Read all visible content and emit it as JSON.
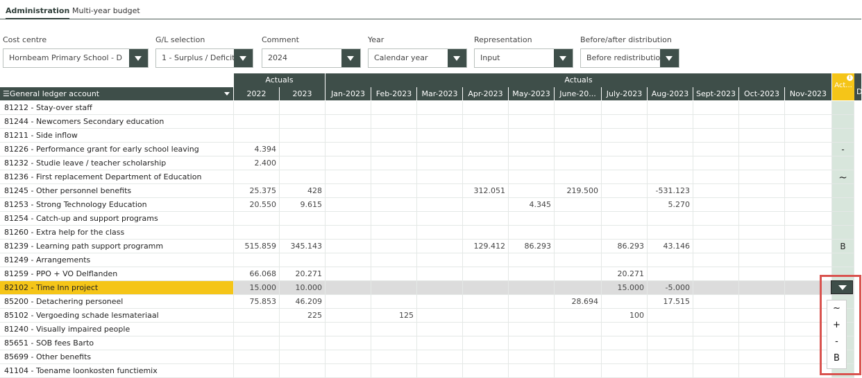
{
  "tabs": [
    {
      "label": "Administration",
      "active": true
    },
    {
      "label": "Multi-year budget",
      "active": false
    }
  ],
  "filters": [
    {
      "label": "Cost centre",
      "value": "Hornbeam Primary School - D"
    },
    {
      "label": "G/L selection",
      "value": "1 - Surplus / Deficit"
    },
    {
      "label": "Comment",
      "value": "2024"
    },
    {
      "label": "Year",
      "value": "Calendar year"
    },
    {
      "label": "Representation",
      "value": "Input"
    },
    {
      "label": "Before/after distribution",
      "value": "Before redistribution"
    }
  ],
  "grid": {
    "group_headers": [
      "Actuals",
      "Actuals",
      "Act..."
    ],
    "name_header": "General ledger account",
    "columns": [
      "2022",
      "2023",
      "Jan-2023",
      "Feb-2023",
      "Mar-2023",
      "Apr-2023",
      "May-2023",
      "June-20...",
      "July-2023",
      "Aug-2023",
      "Sept-2023",
      "Oct-2023",
      "Nov-2023"
    ],
    "rows": [
      {
        "name": "81212 - Stay-over staff",
        "values": [
          "",
          "",
          "",
          "",
          "",
          "",
          "",
          "",
          "",
          "",
          "",
          "",
          ""
        ],
        "act": ""
      },
      {
        "name": "81244 - Newcomers Secondary education",
        "values": [
          "",
          "",
          "",
          "",
          "",
          "",
          "",
          "",
          "",
          "",
          "",
          "",
          ""
        ],
        "act": ""
      },
      {
        "name": "81211 - Side inflow",
        "values": [
          "",
          "",
          "",
          "",
          "",
          "",
          "",
          "",
          "",
          "",
          "",
          "",
          ""
        ],
        "act": ""
      },
      {
        "name": "81226 - Performance grant for early school leaving",
        "values": [
          "4.394",
          "",
          "",
          "",
          "",
          "",
          "",
          "",
          "",
          "",
          "",
          "",
          ""
        ],
        "act": "-"
      },
      {
        "name": "81232 - Studie leave / teacher scholarship",
        "values": [
          "2.400",
          "",
          "",
          "",
          "",
          "",
          "",
          "",
          "",
          "",
          "",
          "",
          ""
        ],
        "act": ""
      },
      {
        "name": "81236 - First replacement Department of Education",
        "values": [
          "",
          "",
          "",
          "",
          "",
          "",
          "",
          "",
          "",
          "",
          "",
          "",
          ""
        ],
        "act": "~"
      },
      {
        "name": "81245 - Other personnel benefits",
        "values": [
          "25.375",
          "428",
          "",
          "",
          "",
          "312.051",
          "",
          "219.500",
          "",
          "-531.123",
          "",
          "",
          ""
        ],
        "act": ""
      },
      {
        "name": "81253 - Strong Technology Education",
        "values": [
          "20.550",
          "9.615",
          "",
          "",
          "",
          "",
          "4.345",
          "",
          "",
          "5.270",
          "",
          "",
          ""
        ],
        "act": ""
      },
      {
        "name": "81254 - Catch-up and support programs",
        "values": [
          "",
          "",
          "",
          "",
          "",
          "",
          "",
          "",
          "",
          "",
          "",
          "",
          ""
        ],
        "act": ""
      },
      {
        "name": "81260 - Extra help for the class",
        "values": [
          "",
          "",
          "",
          "",
          "",
          "",
          "",
          "",
          "",
          "",
          "",
          "",
          ""
        ],
        "act": ""
      },
      {
        "name": "81239 - Learning path support programm",
        "values": [
          "515.859",
          "345.143",
          "",
          "",
          "",
          "129.412",
          "86.293",
          "",
          "86.293",
          "43.146",
          "",
          "",
          ""
        ],
        "act": "B"
      },
      {
        "name": "81249 - Arrangements",
        "values": [
          "",
          "",
          "",
          "",
          "",
          "",
          "",
          "",
          "",
          "",
          "",
          "",
          ""
        ],
        "act": ""
      },
      {
        "name": "81259 - PPO + VO Delflanden",
        "values": [
          "66.068",
          "20.271",
          "",
          "",
          "",
          "",
          "",
          "",
          "20.271",
          "",
          "",
          "",
          ""
        ],
        "act": ""
      },
      {
        "name": "82102 - Time Inn project",
        "values": [
          "15.000",
          "10.000",
          "",
          "",
          "",
          "",
          "",
          "",
          "15.000",
          "-5.000",
          "",
          "",
          ""
        ],
        "act": "",
        "selected": true
      },
      {
        "name": "85200 - Detachering personeel",
        "values": [
          "75.853",
          "46.209",
          "",
          "",
          "",
          "",
          "",
          "28.694",
          "",
          "17.515",
          "",
          "",
          ""
        ],
        "act": ""
      },
      {
        "name": "85102 - Vergoeding schade lesmateriaal",
        "values": [
          "",
          "225",
          "",
          "125",
          "",
          "",
          "",
          "",
          "100",
          "",
          "",
          "",
          ""
        ],
        "act": ""
      },
      {
        "name": "81240 - Visually impaired people",
        "values": [
          "",
          "",
          "",
          "",
          "",
          "",
          "",
          "",
          "",
          "",
          "",
          "",
          ""
        ],
        "act": ""
      },
      {
        "name": "85651 - SOB fees Barto",
        "values": [
          "",
          "",
          "",
          "",
          "",
          "",
          "",
          "",
          "",
          "",
          "",
          "",
          ""
        ],
        "act": ""
      },
      {
        "name": "85699 - Other benefits",
        "values": [
          "",
          "",
          "",
          "",
          "",
          "",
          "",
          "",
          "",
          "",
          "",
          "",
          ""
        ],
        "act": ""
      },
      {
        "name": "41104 - Toename loonkosten functiemix",
        "values": [
          "",
          "",
          "",
          "",
          "",
          "",
          "",
          "",
          "",
          "",
          "",
          "",
          ""
        ],
        "act": ""
      }
    ]
  },
  "dropdown_menu": {
    "options": [
      "~",
      "+",
      "-",
      "B"
    ]
  },
  "colors": {
    "header_bg": "#3e4e49",
    "selected_row": "#f5c518",
    "act_cell": "#d8e6dc",
    "highlight_border": "#d9534f"
  },
  "icons": {
    "menu": "hamburger-icon",
    "sort": "sort-down-icon",
    "info": "info-icon",
    "dropdown": "chevron-down-icon"
  }
}
